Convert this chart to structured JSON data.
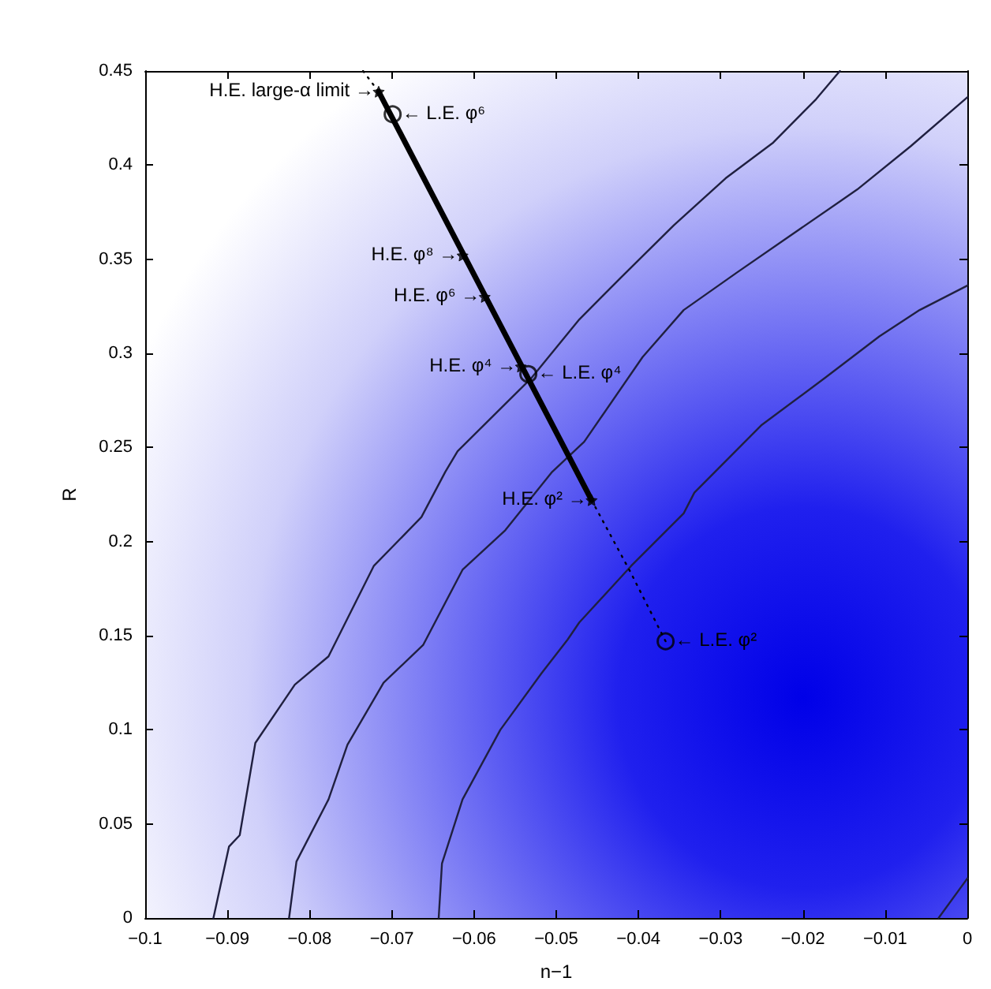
{
  "chart_data": {
    "type": "line",
    "xlabel": "n−1",
    "ylabel": "R",
    "xlim": [
      -0.1,
      0
    ],
    "xticks": [
      -0.1,
      -0.09,
      -0.08,
      -0.07,
      -0.06,
      -0.05,
      -0.04,
      -0.03,
      -0.02,
      -0.01,
      0
    ],
    "ylim": [
      0,
      0.45
    ],
    "yticks": [
      0,
      0.05,
      0.1,
      0.15,
      0.2,
      0.25,
      0.3,
      0.35,
      0.4,
      0.45
    ],
    "grid": false,
    "series": [
      {
        "type": "line",
        "color": "#202040",
        "line_style": "solid",
        "marker": "none",
        "x": [
          -0.0917,
          -0.0898,
          -0.0885,
          -0.0866,
          -0.0818,
          -0.0777,
          -0.0722,
          -0.0664,
          -0.0635,
          -0.062,
          -0.053,
          -0.0472,
          -0.0422,
          -0.0357,
          -0.0294,
          -0.0236,
          -0.0184,
          -0.0155
        ],
        "values": [
          0,
          0.038,
          0.044,
          0.093,
          0.124,
          0.139,
          0.187,
          0.213,
          0.237,
          0.248,
          0.287,
          0.318,
          0.34,
          0.368,
          0.393,
          0.412,
          0.435,
          0.45
        ]
      },
      {
        "type": "line",
        "color": "#202040",
        "line_style": "solid",
        "marker": "none",
        "x": [
          -0.0825,
          -0.0816,
          -0.0777,
          -0.0754,
          -0.071,
          -0.0662,
          -0.0614,
          -0.0562,
          -0.0505,
          -0.0466,
          -0.0395,
          -0.0345,
          -0.028,
          -0.0217,
          -0.0134,
          -0.0069,
          0
        ],
        "values": [
          0,
          0.03,
          0.063,
          0.092,
          0.125,
          0.145,
          0.185,
          0.206,
          0.237,
          0.253,
          0.298,
          0.323,
          0.343,
          0.362,
          0.387,
          0.41,
          0.436
        ]
      },
      {
        "type": "line",
        "color": "#202040",
        "line_style": "solid",
        "marker": "none",
        "x": [
          -0.0643,
          -0.0639,
          -0.0614,
          -0.0568,
          -0.0518,
          -0.0486,
          -0.0472,
          -0.0409,
          -0.0345,
          -0.0332,
          -0.025,
          -0.0173,
          -0.0107,
          -0.0058,
          0
        ],
        "values": [
          0,
          0.029,
          0.063,
          0.1,
          0.13,
          0.148,
          0.157,
          0.187,
          0.215,
          0.226,
          0.262,
          0.287,
          0.309,
          0.323,
          0.336
        ]
      },
      {
        "type": "line",
        "color": "#202040",
        "line_style": "solid",
        "marker": "none",
        "x": [
          -0.0035,
          0
        ],
        "values": [
          0,
          0.021
        ]
      },
      {
        "type": "line",
        "color": "#000000",
        "line_style": "solid",
        "marker": "none",
        "x": [
          -0.0716,
          -0.0457
        ],
        "values": [
          0.439,
          0.222
        ]
      },
      {
        "color": "#000000",
        "line_style": "dotted",
        "marker": "none",
        "x": [
          -0.0735,
          -0.0716
        ],
        "values": [
          0.45,
          0.439
        ]
      },
      {
        "color": "#000000",
        "line_style": "dotted",
        "marker": "none",
        "x": [
          -0.0457,
          -0.041,
          -0.0367
        ],
        "values": [
          0.222,
          0.184,
          0.147
        ]
      },
      {
        "type": "scatter",
        "color": "#000000",
        "marker": "star",
        "x": [
          -0.0716,
          -0.0614,
          -0.0587,
          -0.0543,
          -0.0457
        ],
        "values": [
          0.439,
          0.352,
          0.33,
          0.293,
          0.222
        ]
      },
      {
        "type": "scatter",
        "color": "#000000",
        "marker": "circle",
        "x": [
          -0.0699,
          -0.0534,
          -0.0367
        ],
        "values": [
          0.427,
          0.289,
          0.147
        ]
      }
    ],
    "annotations": [
      {
        "text": "H.E. large-α limit →",
        "x": -0.0716,
        "y": 0.439
      },
      {
        "text": "← L.E. φ⁶",
        "x": -0.0699,
        "y": 0.427
      },
      {
        "text": "H.E. φ⁸ →",
        "x": -0.0614,
        "y": 0.352
      },
      {
        "text": "H.E. φ⁶ →",
        "x": -0.0587,
        "y": 0.33
      },
      {
        "text": "H.E. φ⁴ →",
        "x": -0.0543,
        "y": 0.293
      },
      {
        "text": "← L.E. φ⁴",
        "x": -0.0534,
        "y": 0.289
      },
      {
        "text": "H.E. φ² →",
        "x": -0.0457,
        "y": 0.222
      },
      {
        "text": "← L.E. φ²",
        "x": -0.0367,
        "y": 0.147
      }
    ]
  }
}
